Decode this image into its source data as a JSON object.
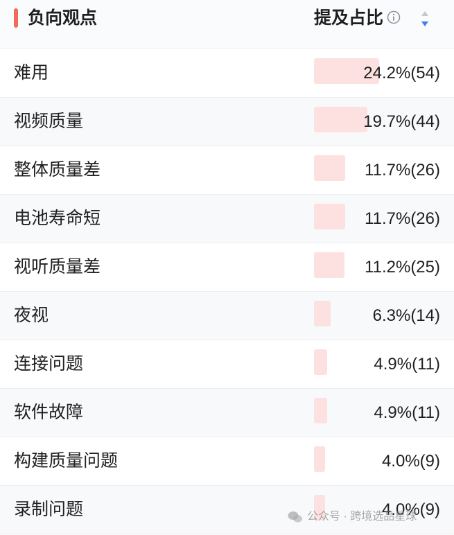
{
  "header": {
    "title": "负向观点",
    "column_title": "提及占比"
  },
  "colors": {
    "accent": "#f06b5e",
    "bar": "#fde1e1",
    "sort_active": "#3d7ef5"
  },
  "rows": [
    {
      "label": "难用",
      "value": "24.2%(54)",
      "share": 24.2
    },
    {
      "label": "视频质量",
      "value": "19.7%(44)",
      "share": 19.7
    },
    {
      "label": "整体质量差",
      "value": "11.7%(26)",
      "share": 11.7
    },
    {
      "label": "电池寿命短",
      "value": "11.7%(26)",
      "share": 11.7
    },
    {
      "label": "视听质量差",
      "value": "11.2%(25)",
      "share": 11.2
    },
    {
      "label": "夜视",
      "value": "6.3%(14)",
      "share": 6.3
    },
    {
      "label": "连接问题",
      "value": "4.9%(11)",
      "share": 4.9
    },
    {
      "label": "软件故障",
      "value": "4.9%(11)",
      "share": 4.9
    },
    {
      "label": "构建质量问题",
      "value": "4.0%(9)",
      "share": 4.0
    },
    {
      "label": "录制问题",
      "value": "4.0%(9)",
      "share": 4.0
    }
  ],
  "watermark": {
    "icon": "wechat-icon",
    "text": "公众号 · 跨境选品星球"
  }
}
